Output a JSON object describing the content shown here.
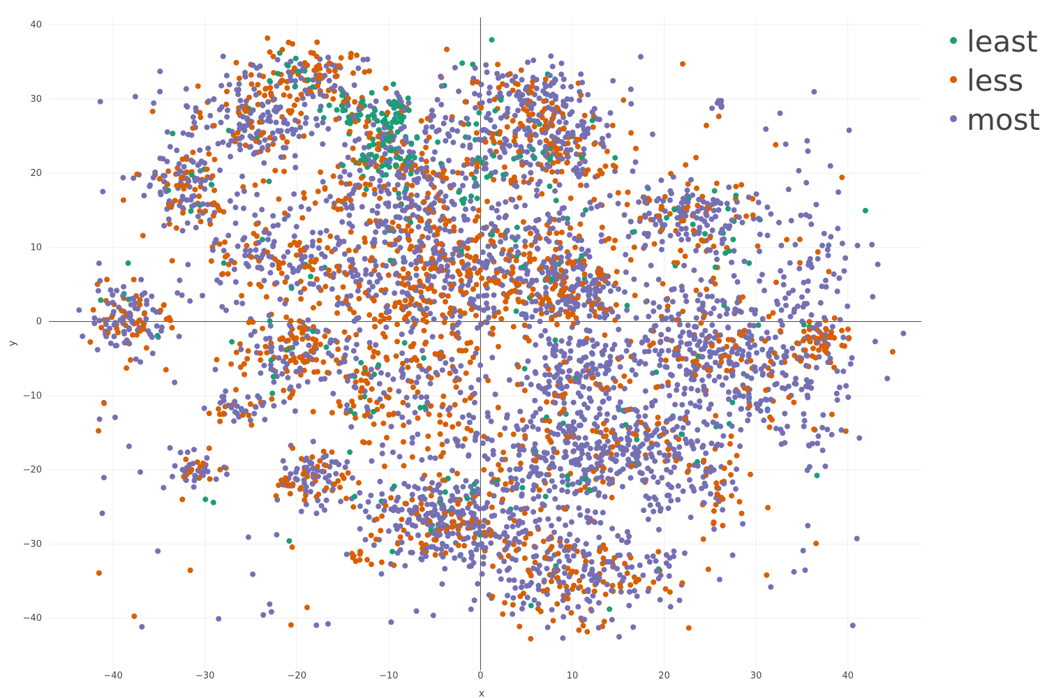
{
  "chart_data": {
    "type": "scatter",
    "title": "",
    "xlabel": "x",
    "ylabel": "y",
    "xlim": [
      -47,
      48
    ],
    "ylim": [
      -47,
      41
    ],
    "xticks": [
      -40,
      -30,
      -20,
      -10,
      0,
      10,
      20,
      30,
      40
    ],
    "yticks": [
      -40,
      -30,
      -20,
      -10,
      0,
      10,
      20,
      30,
      40
    ],
    "grid": true,
    "legend_position": "top-right",
    "colors": {
      "least": "#1b9e77",
      "less": "#d95f02",
      "most": "#7570b3"
    },
    "legend": [
      "least",
      "less",
      "most"
    ],
    "clusters": [
      {
        "cx": -38,
        "cy": 0,
        "sx": 2.2,
        "sy": 2.4,
        "n": 130,
        "mix": [
          0.07,
          0.38,
          0.55
        ]
      },
      {
        "cx": -32,
        "cy": 18,
        "sx": 2.4,
        "sy": 2.8,
        "n": 130,
        "mix": [
          0.05,
          0.27,
          0.68
        ]
      },
      {
        "cx": -25,
        "cy": 27,
        "sx": 3.5,
        "sy": 3.0,
        "n": 170,
        "mix": [
          0.03,
          0.27,
          0.7
        ]
      },
      {
        "cx": -19,
        "cy": 33,
        "sx": 3.0,
        "sy": 2.0,
        "n": 150,
        "mix": [
          0.08,
          0.47,
          0.45
        ]
      },
      {
        "cx": -22,
        "cy": 8,
        "sx": 4.5,
        "sy": 3.5,
        "n": 190,
        "mix": [
          0.03,
          0.37,
          0.6
        ]
      },
      {
        "cx": -20,
        "cy": -4,
        "sx": 3.2,
        "sy": 2.6,
        "n": 150,
        "mix": [
          0.05,
          0.45,
          0.5
        ]
      },
      {
        "cx": -18,
        "cy": -21,
        "sx": 2.3,
        "sy": 2.0,
        "n": 90,
        "mix": [
          0.02,
          0.28,
          0.7
        ]
      },
      {
        "cx": -11,
        "cy": 24,
        "sx": 2.3,
        "sy": 3.0,
        "n": 120,
        "mix": [
          0.55,
          0.15,
          0.3
        ]
      },
      {
        "cx": -7,
        "cy": 18,
        "sx": 3.5,
        "sy": 5.0,
        "n": 260,
        "mix": [
          0.05,
          0.3,
          0.65
        ]
      },
      {
        "cx": -6,
        "cy": 6,
        "sx": 6.0,
        "sy": 4.5,
        "n": 380,
        "mix": [
          0.02,
          0.45,
          0.53
        ]
      },
      {
        "cx": -6,
        "cy": -8,
        "sx": 4.0,
        "sy": 5.0,
        "n": 160,
        "mix": [
          0.02,
          0.52,
          0.46
        ]
      },
      {
        "cx": -4,
        "cy": -27,
        "sx": 4.5,
        "sy": 3.0,
        "n": 320,
        "mix": [
          0.05,
          0.22,
          0.73
        ]
      },
      {
        "cx": 7,
        "cy": 25,
        "sx": 4.0,
        "sy": 4.5,
        "n": 340,
        "mix": [
          0.06,
          0.32,
          0.62
        ]
      },
      {
        "cx": 5,
        "cy": 8,
        "sx": 4.5,
        "sy": 4.5,
        "n": 220,
        "mix": [
          0.1,
          0.4,
          0.5
        ]
      },
      {
        "cx": 10,
        "cy": 5,
        "sx": 3.0,
        "sy": 3.5,
        "n": 170,
        "mix": [
          0.03,
          0.3,
          0.67
        ]
      },
      {
        "cx": 10,
        "cy": -7,
        "sx": 2.6,
        "sy": 2.6,
        "n": 140,
        "mix": [
          0.02,
          0.07,
          0.91
        ]
      },
      {
        "cx": 8,
        "cy": -19,
        "sx": 5.5,
        "sy": 4.5,
        "n": 340,
        "mix": [
          0.04,
          0.24,
          0.72
        ]
      },
      {
        "cx": 10,
        "cy": -34,
        "sx": 5.0,
        "sy": 3.5,
        "n": 260,
        "mix": [
          0.02,
          0.35,
          0.63
        ]
      },
      {
        "cx": 18,
        "cy": -17,
        "sx": 4.0,
        "sy": 2.6,
        "n": 170,
        "mix": [
          0.03,
          0.22,
          0.75
        ]
      },
      {
        "cx": 23,
        "cy": 14,
        "sx": 4.0,
        "sy": 2.6,
        "n": 190,
        "mix": [
          0.05,
          0.35,
          0.6
        ]
      },
      {
        "cx": 26,
        "cy": -5,
        "sx": 6.5,
        "sy": 5.5,
        "n": 520,
        "mix": [
          0.02,
          0.22,
          0.76
        ]
      },
      {
        "cx": 36,
        "cy": 6,
        "sx": 3.0,
        "sy": 4.5,
        "n": 70,
        "mix": [
          0.0,
          0.1,
          0.9
        ]
      },
      {
        "cx": 37,
        "cy": -3,
        "sx": 1.5,
        "sy": 2.0,
        "n": 45,
        "mix": [
          0.0,
          0.65,
          0.35
        ]
      },
      {
        "cx": 26,
        "cy": -23,
        "sx": 1.5,
        "sy": 1.8,
        "n": 45,
        "mix": [
          0.0,
          0.5,
          0.5
        ]
      },
      {
        "cx": -31,
        "cy": -20,
        "sx": 1.3,
        "sy": 1.2,
        "n": 45,
        "mix": [
          0.0,
          0.4,
          0.6
        ]
      },
      {
        "cx": -26,
        "cy": -12,
        "sx": 1.6,
        "sy": 1.2,
        "n": 40,
        "mix": [
          0.0,
          0.3,
          0.7
        ]
      },
      {
        "cx": -13,
        "cy": -9,
        "sx": 1.5,
        "sy": 3.0,
        "n": 60,
        "mix": [
          0.08,
          0.7,
          0.22
        ]
      },
      {
        "cx": -14,
        "cy": 18,
        "sx": 2.5,
        "sy": 1.5,
        "n": 30,
        "mix": [
          0.0,
          0.8,
          0.2
        ]
      },
      {
        "cx": 0,
        "cy": 24,
        "sx": 1.5,
        "sy": 6.0,
        "n": 50,
        "mix": [
          0.3,
          0.3,
          0.4
        ]
      },
      {
        "cx": 4,
        "cy": 31,
        "sx": 3.0,
        "sy": 1.5,
        "n": 60,
        "mix": [
          0.0,
          0.1,
          0.9
        ]
      },
      {
        "cx": 26,
        "cy": 29,
        "sx": 0.6,
        "sy": 0.5,
        "n": 8,
        "mix": [
          0.0,
          0.0,
          1.0
        ]
      },
      {
        "cx": -14,
        "cy": 28,
        "sx": 1.5,
        "sy": 1.2,
        "n": 40,
        "mix": [
          0.65,
          0.2,
          0.15
        ]
      },
      {
        "cx": -9,
        "cy": 29,
        "sx": 1.0,
        "sy": 1.0,
        "n": 25,
        "mix": [
          0.7,
          0.1,
          0.2
        ]
      },
      {
        "cx": 20,
        "cy": -24,
        "sx": 0.8,
        "sy": 1.0,
        "n": 12,
        "mix": [
          0.0,
          0.0,
          1.0
        ]
      },
      {
        "cx": -21,
        "cy": -22,
        "sx": 0.6,
        "sy": 0.6,
        "n": 10,
        "mix": [
          0.0,
          1.0,
          0.0
        ]
      },
      {
        "cx": -13,
        "cy": -32,
        "sx": 0.6,
        "sy": 0.4,
        "n": 10,
        "mix": [
          0.0,
          1.0,
          0.0
        ]
      },
      {
        "cx": 37,
        "cy": -16,
        "sx": 0.8,
        "sy": 1.5,
        "n": 12,
        "mix": [
          0.0,
          0.0,
          1.0
        ]
      }
    ],
    "noise": {
      "n": 280,
      "xlim": [
        -42,
        42
      ],
      "ylim": [
        -42,
        36
      ],
      "mix": [
        0.05,
        0.35,
        0.6
      ]
    }
  }
}
